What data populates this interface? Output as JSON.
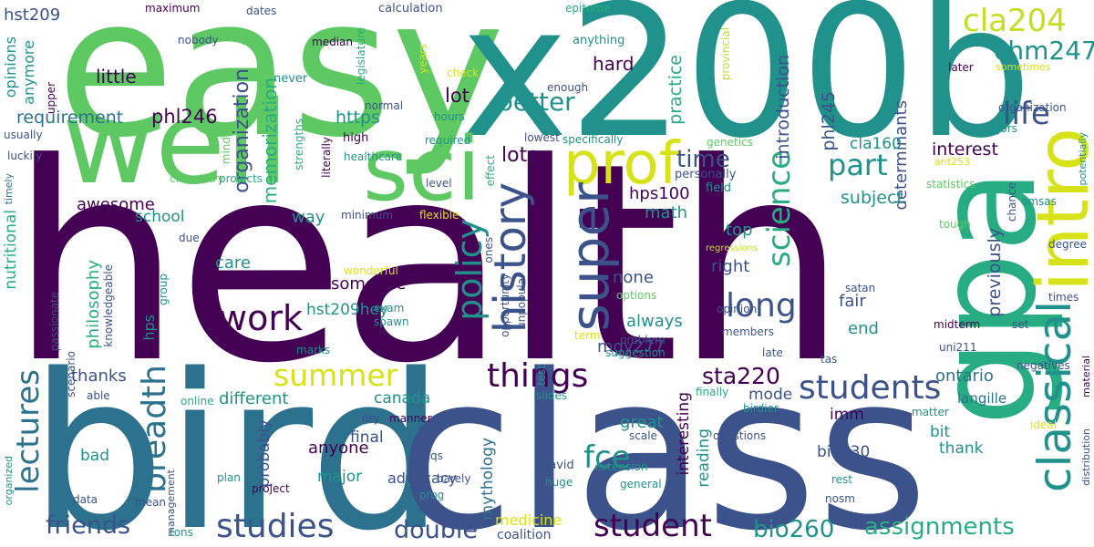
{
  "palette": {
    "dark_purple": "#440154",
    "indigo": "#3b528b",
    "blue": "#2c728e",
    "teal": "#21918c",
    "green": "#27ad81",
    "light_green": "#5ec962",
    "yellow": "#d8e219",
    "light_yellow": "#c2df23"
  },
  "words": {
    "health": "health",
    "bird": "bird",
    "class": "class",
    "easy": "easy",
    "x200b": "x200b",
    "well": "well",
    "gpa": "gpa",
    "intro": "intro",
    "sci": "sci",
    "prof": "prof",
    "super": "super",
    "classical": "classical",
    "history": "history",
    "policy": "policy",
    "breadth": "breadth",
    "lectures": "lectures",
    "things": "things",
    "students": "students",
    "studies": "studies",
    "student": "student",
    "summer": "summer",
    "work": "work",
    "science": "science",
    "long": "long",
    "life": "life",
    "part": "part",
    "cla204": "cla204",
    "chm247": "chm247",
    "better": "better",
    "fce": "fce",
    "assignments": "assignments",
    "bio260": "bio260",
    "double": "double",
    "friends": "friends",
    "sta220": "sta220",
    "time": "time",
    "lots": "lots",
    "lot": "lot",
    "hard": "hard",
    "little": "little",
    "requirement": "requirement",
    "phl246": "phl246",
    "https": "https",
    "memorization": "memorization",
    "organization_big": "organization",
    "introduction": "introduction",
    "practice": "practice",
    "phl245": "phl245",
    "determinants": "determinants",
    "interest": "interest",
    "subject": "subject",
    "cla160": "cla160",
    "previously": "previously",
    "opinions": "opinions",
    "anymore": "anymore",
    "hst209_top": "hst209",
    "awesome": "awesome",
    "school": "school",
    "way": "way",
    "hps100": "hps100",
    "math": "math",
    "top": "top",
    "care": "care",
    "someone": "someone",
    "hst209hey": "hst209hey",
    "none": "none",
    "always": "always",
    "right": "right",
    "mgy277": "mgy277",
    "fair": "fair",
    "hald": "hald",
    "end": "end",
    "philosophy": "philosophy",
    "nutritional": "nutritional",
    "hps": "hps",
    "thanks": "thanks",
    "different": "different",
    "canada": "canada",
    "great": "great",
    "mode": "mode",
    "ontario": "ontario",
    "langille": "langille",
    "bit": "bit",
    "thank": "thank",
    "bio230": "bio230",
    "imm": "imm",
    "interesting": "interesting",
    "reading": "reading",
    "mythology": "mythology",
    "final": "final",
    "probably": "probably",
    "anyone": "anyone",
    "major": "major",
    "advocacy": "advocacy",
    "bad": "bad",
    "medicine": "medicine",
    "coalition": "coalition",
    "maximum": "maximum",
    "dates": "dates",
    "calculation": "calculation",
    "epitome": "epitome",
    "nobody": "nobody",
    "median": "median",
    "years": "years",
    "anything": "anything",
    "check": "check",
    "never": "never",
    "legislature": "legislature",
    "upper": "upper",
    "normal": "normal",
    "hours": "hours",
    "enough": "enough",
    "usually": "usually",
    "luckily": "luckily",
    "high": "high",
    "lowest": "lowest",
    "healthcare": "healthcare",
    "required": "required",
    "specifically": "specifically",
    "genetics": "genetics",
    "mind": "mind",
    "strengths": "strengths",
    "literally": "literally",
    "effect": "effect",
    "personally": "personally",
    "provincial": "provincial",
    "sometimes": "sometimes",
    "organization_small": "organization",
    "majors": "majors",
    "later": "later",
    "potentially": "potentially",
    "ant253": "ant253",
    "statistics": "statistics",
    "omsas": "omsas",
    "chance": "chance",
    "timely": "timely",
    "chemistry": "chemistry",
    "projects": "projects",
    "level": "level",
    "minimum": "minimum",
    "flexible": "flexible",
    "field": "field",
    "tough": "tough",
    "degree": "degree",
    "due": "due",
    "group": "group",
    "wonderful": "wonderful",
    "ones": "ones",
    "unpopular": "unpopular",
    "opportunity": "opportunity",
    "options": "options",
    "regressions": "regressions",
    "satan": "satan",
    "times": "times",
    "set": "set",
    "midterm": "midterm",
    "knowledgeable": "knowledgeable",
    "passionate": "passionate",
    "exam": "exam",
    "spawn": "spawn",
    "problem": "problem",
    "term": "term",
    "opinion": "opinion",
    "members": "members",
    "suggestion": "suggestion",
    "late": "late",
    "tas": "tas",
    "uni211": "uni211",
    "negatives": "negatives",
    "scenario": "scenario",
    "marks": "marks",
    "able": "able",
    "online": "online",
    "test": "test",
    "slides": "slides",
    "dry": "dry",
    "manner": "manner",
    "finally": "finally",
    "scale": "scale",
    "questions": "questions",
    "birdier": "birdier",
    "matter": "matter",
    "ideal": "ideal",
    "material": "material",
    "distribution": "distribution",
    "organized": "organized",
    "management": "management",
    "plan": "plan",
    "project": "project",
    "data": "data",
    "mean": "mean",
    "tons": "tons",
    "reqs": "reqs",
    "barely": "barely",
    "prog": "prog",
    "david": "david",
    "huge": "huge",
    "general": "general",
    "extension": "extension",
    "rest": "rest",
    "nosm": "nosm"
  }
}
